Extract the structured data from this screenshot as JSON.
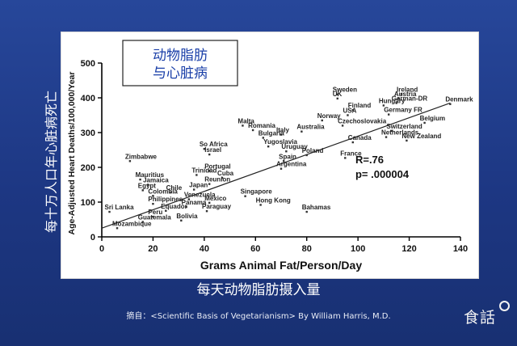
{
  "caption": {
    "y_axis_cn": "每十万人口年心脏病死亡",
    "x_axis_cn": "每天动物脂肪摄入量",
    "source": "摘自：<Scientific Basis of Vegetarianism> By William Harris, M.D."
  },
  "logo": {
    "text": "食話"
  },
  "colors": {
    "background": "#1f3a86",
    "title_box_text": "#1a3fa8",
    "points": "#333333"
  },
  "chart_data": {
    "type": "scatter",
    "title_lines": [
      "动物脂肪",
      "与心脏病"
    ],
    "xlabel": "Grams Animal Fat/Person/Day",
    "ylabel": "Age-Adjusted Heart Deaths/100,000/Year",
    "xlim": [
      0,
      140
    ],
    "ylim": [
      0,
      500
    ],
    "x_ticks": [
      0,
      20,
      40,
      60,
      80,
      100,
      120,
      140
    ],
    "y_ticks": [
      0,
      100,
      200,
      300,
      400,
      500
    ],
    "grid": false,
    "trendline": {
      "from": [
        0,
        25
      ],
      "to": [
        136,
        385
      ]
    },
    "annotations": [
      "R=.76",
      "p= .000004"
    ],
    "points": [
      {
        "label": "Sweden",
        "x": 92,
        "y": 410
      },
      {
        "label": "UK",
        "x": 92,
        "y": 398
      },
      {
        "label": "Ireland",
        "x": 117,
        "y": 411
      },
      {
        "label": "Austria",
        "x": 116,
        "y": 398
      },
      {
        "label": "Denmark",
        "x": 136,
        "y": 382
      },
      {
        "label": "German-DR",
        "x": 115,
        "y": 385
      },
      {
        "label": "Hungary",
        "x": 110,
        "y": 378
      },
      {
        "label": "Finland",
        "x": 98,
        "y": 365
      },
      {
        "label": "USA",
        "x": 96,
        "y": 350
      },
      {
        "label": "Germany FR",
        "x": 112,
        "y": 352
      },
      {
        "label": "Norway",
        "x": 86,
        "y": 335
      },
      {
        "label": "Czechoslovakia",
        "x": 94,
        "y": 320
      },
      {
        "label": "Belgium",
        "x": 126,
        "y": 328
      },
      {
        "label": "Switzerland",
        "x": 113,
        "y": 305
      },
      {
        "label": "Netherlands",
        "x": 111,
        "y": 287
      },
      {
        "label": "New Zealand",
        "x": 119,
        "y": 277
      },
      {
        "label": "Canada",
        "x": 98,
        "y": 272
      },
      {
        "label": "Malta",
        "x": 55,
        "y": 320
      },
      {
        "label": "Romania",
        "x": 59,
        "y": 307
      },
      {
        "label": "Australia",
        "x": 78,
        "y": 303
      },
      {
        "label": "Italy",
        "x": 70,
        "y": 294
      },
      {
        "label": "Bulgaria",
        "x": 63,
        "y": 285
      },
      {
        "label": "Yugoslavia",
        "x": 65,
        "y": 260
      },
      {
        "label": "Uruguay",
        "x": 72,
        "y": 246
      },
      {
        "label": "Poland",
        "x": 80,
        "y": 235
      },
      {
        "label": "France",
        "x": 95,
        "y": 227
      },
      {
        "label": "Spain",
        "x": 71,
        "y": 218
      },
      {
        "label": "Argentina",
        "x": 70,
        "y": 196
      },
      {
        "label": "So Africa",
        "x": 40,
        "y": 253
      },
      {
        "label": "Israel",
        "x": 42,
        "y": 237
      },
      {
        "label": "Zimbabwe",
        "x": 11,
        "y": 218
      },
      {
        "label": "Portugal",
        "x": 42,
        "y": 190
      },
      {
        "label": "Trinidad",
        "x": 37,
        "y": 178
      },
      {
        "label": "Cuba",
        "x": 47,
        "y": 170
      },
      {
        "label": "Reunion",
        "x": 42,
        "y": 152
      },
      {
        "label": "Japan",
        "x": 36,
        "y": 136
      },
      {
        "label": "Mauritius",
        "x": 15,
        "y": 165
      },
      {
        "label": "Jamaica",
        "x": 18,
        "y": 150
      },
      {
        "label": "Egypt",
        "x": 16,
        "y": 134
      },
      {
        "label": "Chile",
        "x": 27,
        "y": 128
      },
      {
        "label": "Colombia",
        "x": 20,
        "y": 118
      },
      {
        "label": "Singapore",
        "x": 56,
        "y": 117
      },
      {
        "label": "Hong Kong",
        "x": 62,
        "y": 92
      },
      {
        "label": "Venezuela",
        "x": 34,
        "y": 108
      },
      {
        "label": "Philippines",
        "x": 20,
        "y": 95
      },
      {
        "label": "Mexico",
        "x": 42,
        "y": 98
      },
      {
        "label": "Panama",
        "x": 33,
        "y": 86
      },
      {
        "label": "Equador",
        "x": 25,
        "y": 75
      },
      {
        "label": "Paraguay",
        "x": 41,
        "y": 74
      },
      {
        "label": "Bahamas",
        "x": 80,
        "y": 72
      },
      {
        "label": "Sri Lanka",
        "x": 3,
        "y": 72
      },
      {
        "label": "Peru",
        "x": 20,
        "y": 58
      },
      {
        "label": "Bolivia",
        "x": 31,
        "y": 47
      },
      {
        "label": "Guatemala",
        "x": 16,
        "y": 43
      },
      {
        "label": "Mozambique",
        "x": 6,
        "y": 25
      }
    ]
  }
}
